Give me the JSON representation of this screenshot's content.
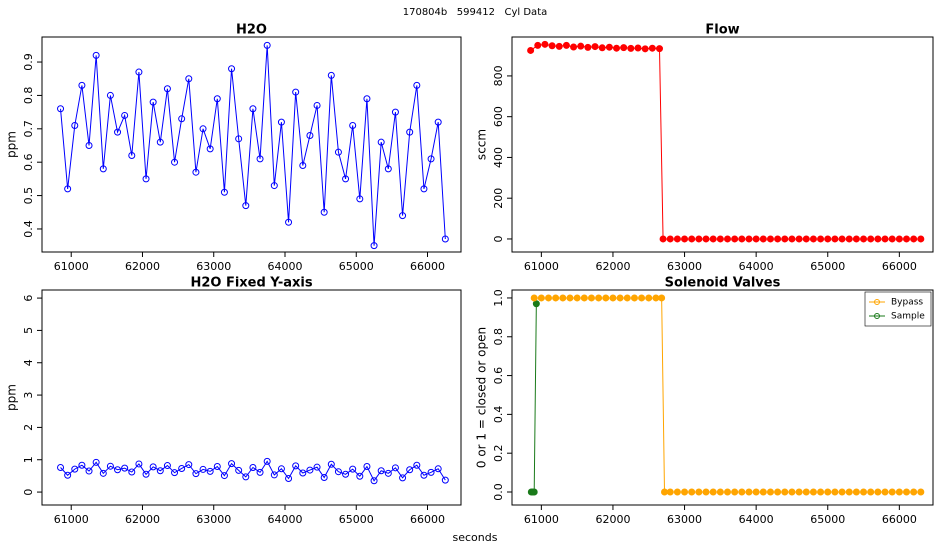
{
  "title": "170804b   599412   Cyl Data",
  "x_label": "seconds",
  "chart_data": [
    {
      "type": "line",
      "title": "H2O",
      "y_label": "ppm",
      "xlim": [
        60590,
        66470
      ],
      "xticks": [
        61000,
        62000,
        63000,
        64000,
        65000,
        66000
      ],
      "ylim": [
        0.331,
        0.975
      ],
      "yticks": [
        0.4,
        0.5,
        0.6,
        0.7,
        0.8,
        0.9
      ],
      "series": [
        {
          "name": "H2O",
          "color": "#0000ff",
          "filled": false,
          "x": [
            60850,
            60950,
            61050,
            61150,
            61250,
            61350,
            61450,
            61550,
            61650,
            61750,
            61850,
            61950,
            62050,
            62150,
            62250,
            62350,
            62450,
            62550,
            62650,
            62750,
            62850,
            62950,
            63050,
            63150,
            63250,
            63350,
            63450,
            63550,
            63650,
            63750,
            63850,
            63950,
            64050,
            64150,
            64250,
            64350,
            64450,
            64550,
            64650,
            64750,
            64850,
            64950,
            65050,
            65150,
            65250,
            65350,
            65450,
            65550,
            65650,
            65750,
            65850,
            65950,
            66050,
            66150,
            66250
          ],
          "values": [
            0.76,
            0.52,
            0.71,
            0.83,
            0.65,
            0.92,
            0.58,
            0.8,
            0.69,
            0.74,
            0.62,
            0.87,
            0.55,
            0.78,
            0.66,
            0.82,
            0.6,
            0.73,
            0.85,
            0.57,
            0.7,
            0.64,
            0.79,
            0.51,
            0.88,
            0.67,
            0.47,
            0.76,
            0.61,
            0.95,
            0.53,
            0.72,
            0.42,
            0.81,
            0.59,
            0.68,
            0.77,
            0.45,
            0.86,
            0.63,
            0.55,
            0.71,
            0.49,
            0.79,
            0.35,
            0.66,
            0.58,
            0.75,
            0.44,
            0.69,
            0.83,
            0.52,
            0.61,
            0.72,
            0.37
          ]
        }
      ]
    },
    {
      "type": "line",
      "title": "Flow",
      "y_label": "sccm",
      "xlim": [
        60590,
        66470
      ],
      "xticks": [
        61000,
        62000,
        63000,
        64000,
        65000,
        66000
      ],
      "ylim": [
        -64,
        991
      ],
      "yticks": [
        0,
        200,
        400,
        600,
        800
      ],
      "series": [
        {
          "name": "Flow",
          "color": "#ff0000",
          "filled": true,
          "x": [
            60850,
            60950,
            61050,
            61150,
            61250,
            61350,
            61450,
            61550,
            61650,
            61750,
            61850,
            61950,
            62050,
            62150,
            62250,
            62350,
            62450,
            62550,
            62650,
            62700,
            62800,
            62900,
            63000,
            63100,
            63200,
            63300,
            63400,
            63500,
            63600,
            63700,
            63800,
            63900,
            64000,
            64100,
            64200,
            64300,
            64400,
            64500,
            64600,
            64700,
            64800,
            64900,
            65000,
            65100,
            65200,
            65300,
            65400,
            65500,
            65600,
            65700,
            65800,
            65900,
            66000,
            66100,
            66200,
            66300
          ],
          "values": [
            925,
            950,
            955,
            948,
            945,
            950,
            942,
            946,
            940,
            944,
            938,
            941,
            936,
            939,
            935,
            937,
            933,
            936,
            934,
            0,
            0,
            0,
            0,
            0,
            0,
            0,
            0,
            0,
            0,
            0,
            0,
            0,
            0,
            0,
            0,
            0,
            0,
            0,
            0,
            0,
            0,
            0,
            0,
            0,
            0,
            0,
            0,
            0,
            0,
            0,
            0,
            0,
            0,
            0,
            0,
            0
          ]
        }
      ]
    },
    {
      "type": "line",
      "title": "H2O Fixed Y-axis",
      "y_label": "ppm",
      "xlim": [
        60590,
        66470
      ],
      "xticks": [
        61000,
        62000,
        63000,
        64000,
        65000,
        66000
      ],
      "ylim": [
        -0.4,
        6.25
      ],
      "yticks": [
        0,
        1,
        2,
        3,
        4,
        5,
        6
      ],
      "series": [
        {
          "name": "H2O",
          "color": "#0000ff",
          "filled": false,
          "x": [
            60850,
            60950,
            61050,
            61150,
            61250,
            61350,
            61450,
            61550,
            61650,
            61750,
            61850,
            61950,
            62050,
            62150,
            62250,
            62350,
            62450,
            62550,
            62650,
            62750,
            62850,
            62950,
            63050,
            63150,
            63250,
            63350,
            63450,
            63550,
            63650,
            63750,
            63850,
            63950,
            64050,
            64150,
            64250,
            64350,
            64450,
            64550,
            64650,
            64750,
            64850,
            64950,
            65050,
            65150,
            65250,
            65350,
            65450,
            65550,
            65650,
            65750,
            65850,
            65950,
            66050,
            66150,
            66250
          ],
          "values": [
            0.76,
            0.52,
            0.71,
            0.83,
            0.65,
            0.92,
            0.58,
            0.8,
            0.69,
            0.74,
            0.62,
            0.87,
            0.55,
            0.78,
            0.66,
            0.82,
            0.6,
            0.73,
            0.85,
            0.57,
            0.7,
            0.64,
            0.79,
            0.51,
            0.88,
            0.67,
            0.47,
            0.76,
            0.61,
            0.95,
            0.53,
            0.72,
            0.42,
            0.81,
            0.59,
            0.68,
            0.77,
            0.45,
            0.86,
            0.63,
            0.55,
            0.71,
            0.49,
            0.79,
            0.35,
            0.66,
            0.58,
            0.75,
            0.44,
            0.69,
            0.83,
            0.52,
            0.61,
            0.72,
            0.37
          ]
        }
      ]
    },
    {
      "type": "line",
      "title": "Solenoid Valves",
      "y_label": "0 or 1 = closed or open",
      "xlim": [
        60590,
        66470
      ],
      "xticks": [
        61000,
        62000,
        63000,
        64000,
        65000,
        66000
      ],
      "ylim": [
        -0.067,
        1.041
      ],
      "yticks": [
        {
          "value": 0,
          "label": "0.0"
        },
        0.2,
        0.4,
        0.6,
        0.8,
        {
          "value": 1,
          "label": "1.0"
        }
      ],
      "legend": "topright",
      "series": [
        {
          "name": "Sample",
          "color": "#1a7a1a",
          "filled": true,
          "x": [
            60860,
            60880,
            60900,
            60930
          ],
          "values": [
            0,
            0,
            0,
            0.97
          ]
        },
        {
          "name": "Bypass",
          "color": "#ffa500",
          "filled": true,
          "x": [
            60900,
            61000,
            61100,
            61200,
            61300,
            61400,
            61500,
            61600,
            61700,
            61800,
            61900,
            62000,
            62100,
            62200,
            62300,
            62400,
            62500,
            62600,
            62680,
            62720,
            62800,
            62900,
            63000,
            63100,
            63200,
            63300,
            63400,
            63500,
            63600,
            63700,
            63800,
            63900,
            64000,
            64100,
            64200,
            64300,
            64400,
            64500,
            64600,
            64700,
            64800,
            64900,
            65000,
            65100,
            65200,
            65300,
            65400,
            65500,
            65600,
            65700,
            65800,
            65900,
            66000,
            66100,
            66200,
            66300
          ],
          "values": [
            1,
            1,
            1,
            1,
            1,
            1,
            1,
            1,
            1,
            1,
            1,
            1,
            1,
            1,
            1,
            1,
            1,
            1,
            1,
            0,
            0,
            0,
            0,
            0,
            0,
            0,
            0,
            0,
            0,
            0,
            0,
            0,
            0,
            0,
            0,
            0,
            0,
            0,
            0,
            0,
            0,
            0,
            0,
            0,
            0,
            0,
            0,
            0,
            0,
            0,
            0,
            0,
            0,
            0,
            0,
            0
          ]
        }
      ]
    }
  ]
}
